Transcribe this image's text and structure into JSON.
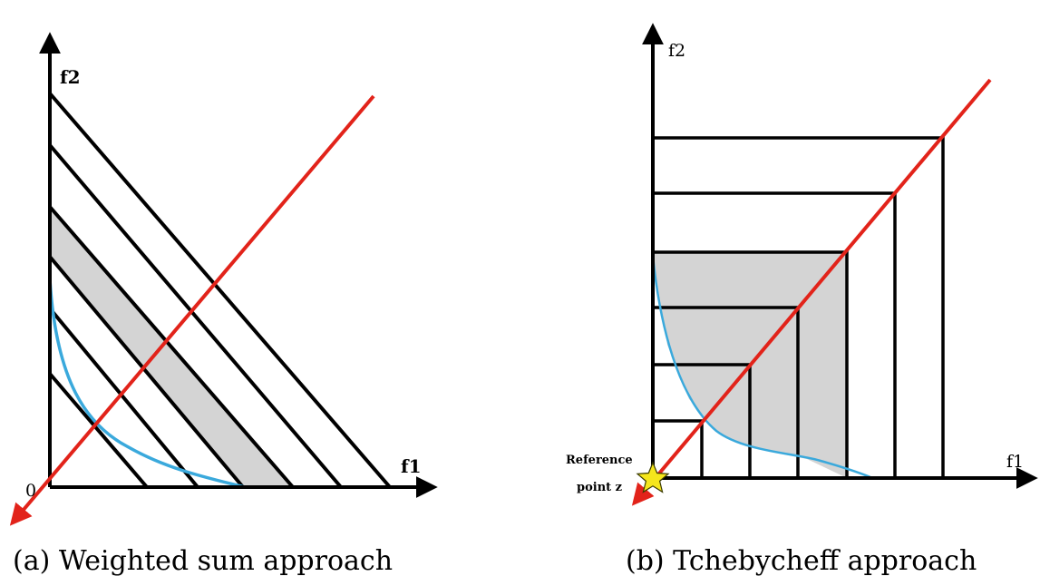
{
  "panel_a": {
    "axis_x_label": "f1",
    "axis_y_label": "f2",
    "origin_label": "0",
    "caption": "(a) Weighted sum approach"
  },
  "panel_b": {
    "axis_x_label": "f1",
    "axis_y_label": "f2",
    "reference_label_line1": "Reference",
    "reference_label_line2": "point z",
    "caption": "(b) Tchebycheff approach"
  },
  "colors": {
    "axis": "#000000",
    "contour": "#000000",
    "weight_vector": "#e2231a",
    "pareto_front": "#3aa9dc",
    "shaded_region": "#d4d4d4",
    "reference_star": "#f5e61c"
  }
}
